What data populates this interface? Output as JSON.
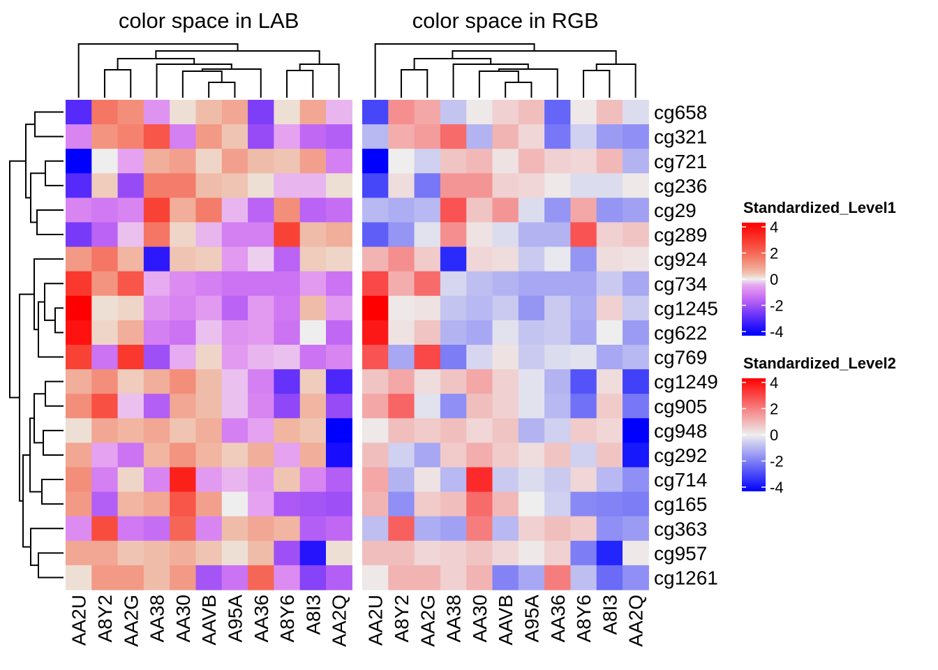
{
  "chart_data": {
    "type": "heatmap",
    "rows": [
      "cg658",
      "cg321",
      "cg721",
      "cg236",
      "cg29",
      "cg289",
      "cg924",
      "cg734",
      "cg1245",
      "cg622",
      "cg769",
      "cg1249",
      "cg905",
      "cg948",
      "cg292",
      "cg714",
      "cg165",
      "cg363",
      "cg957",
      "cg1261"
    ],
    "columns": [
      "AA2U",
      "A8Y2",
      "AA2G",
      "AA38",
      "AA30",
      "AAVB",
      "A95A",
      "AA36",
      "A8Y6",
      "A8I3",
      "AA2Q"
    ],
    "values": [
      [
        -2.8,
        1.6,
        1.2,
        -0.7,
        0.1,
        0.5,
        0.8,
        -2.3,
        0.1,
        0.8,
        -0.3
      ],
      [
        -0.9,
        1.1,
        1.4,
        2.2,
        -1.0,
        1.0,
        0.4,
        -2.0,
        -0.5,
        -1.4,
        -1.6
      ],
      [
        -4.0,
        0.0,
        -0.5,
        0.7,
        0.9,
        0.2,
        0.9,
        0.5,
        0.4,
        0.9,
        -1.0
      ],
      [
        -2.8,
        0.3,
        -2.0,
        1.5,
        1.5,
        0.5,
        0.4,
        0.1,
        -0.3,
        -0.3,
        0.1
      ],
      [
        -0.9,
        -1.1,
        -0.9,
        2.6,
        0.7,
        1.5,
        -0.3,
        -1.5,
        1.2,
        -1.5,
        -1.3
      ],
      [
        -2.4,
        -1.5,
        -0.2,
        1.6,
        0.2,
        -0.3,
        -1.0,
        -1.0,
        2.6,
        0.5,
        0.7
      ],
      [
        1.0,
        1.6,
        0.6,
        -3.3,
        0.4,
        0.3,
        -0.6,
        -0.1,
        -1.5,
        0.3,
        0.2
      ],
      [
        2.8,
        1.1,
        2.2,
        -0.4,
        -0.8,
        -1.0,
        -1.2,
        -1.2,
        -1.2,
        -0.6,
        -1.2
      ],
      [
        4.0,
        0.1,
        0.2,
        -0.7,
        -0.9,
        -0.6,
        -1.5,
        -0.6,
        -1.1,
        0.5,
        -0.6
      ],
      [
        3.6,
        0.2,
        0.7,
        -1.0,
        -1.2,
        -0.2,
        -0.7,
        -0.6,
        -1.2,
        0.0,
        -1.4
      ],
      [
        2.6,
        -1.2,
        2.8,
        -1.9,
        -0.4,
        0.2,
        -0.6,
        -0.3,
        -0.2,
        -1.2,
        -0.9
      ],
      [
        0.7,
        1.2,
        0.3,
        0.7,
        1.2,
        0.5,
        -0.2,
        -1.0,
        -2.6,
        0.3,
        -2.9
      ],
      [
        1.2,
        2.3,
        -0.2,
        -1.6,
        0.8,
        0.5,
        -0.2,
        -0.9,
        -2.1,
        0.6,
        -2.0
      ],
      [
        0.1,
        0.8,
        0.6,
        0.8,
        0.4,
        0.7,
        -1.0,
        -0.5,
        0.6,
        0.4,
        -4.0
      ],
      [
        0.8,
        -0.5,
        -1.2,
        0.6,
        1.1,
        0.6,
        0.3,
        0.7,
        -0.5,
        0.7,
        -3.6
      ],
      [
        1.2,
        -1.0,
        0.2,
        -0.9,
        3.3,
        -0.6,
        -0.3,
        -0.6,
        0.4,
        -0.9,
        -1.6
      ],
      [
        1.0,
        -1.6,
        0.6,
        0.8,
        2.2,
        0.9,
        0.0,
        -0.5,
        -1.7,
        -1.8,
        -1.9
      ],
      [
        -0.8,
        2.4,
        -1.1,
        -1.3,
        1.9,
        -0.9,
        0.5,
        0.8,
        0.6,
        -1.6,
        -1.4
      ],
      [
        0.8,
        0.8,
        0.4,
        0.5,
        0.7,
        0.4,
        0.1,
        0.5,
        -1.9,
        -3.4,
        0.1
      ],
      [
        0.1,
        1.0,
        1.0,
        0.5,
        1.0,
        -1.8,
        -1.2,
        1.9,
        -0.8,
        -2.2,
        -1.6
      ]
    ],
    "panels": [
      {
        "title": "color space in LAB",
        "space": "LAB",
        "legend": "Standardized_Level1"
      },
      {
        "title": "color space in RGB",
        "space": "RGB",
        "legend": "Standardized_Level2"
      }
    ],
    "colormap": {
      "low": "#0000ff",
      "mid": "#eeeeee",
      "high": "#ff0000",
      "breaks": [
        -4,
        0,
        4
      ]
    },
    "legends": [
      {
        "title": "Standardized_Level1",
        "ticks": [
          "4",
          "2",
          "0",
          "-2",
          "-4"
        ]
      },
      {
        "title": "Standardized_Level2",
        "ticks": [
          "4",
          "2",
          "0",
          "-2",
          "-4"
        ]
      }
    ],
    "legend_placement": "right",
    "row_dendrogram": "left",
    "column_dendrogram": "top"
  }
}
